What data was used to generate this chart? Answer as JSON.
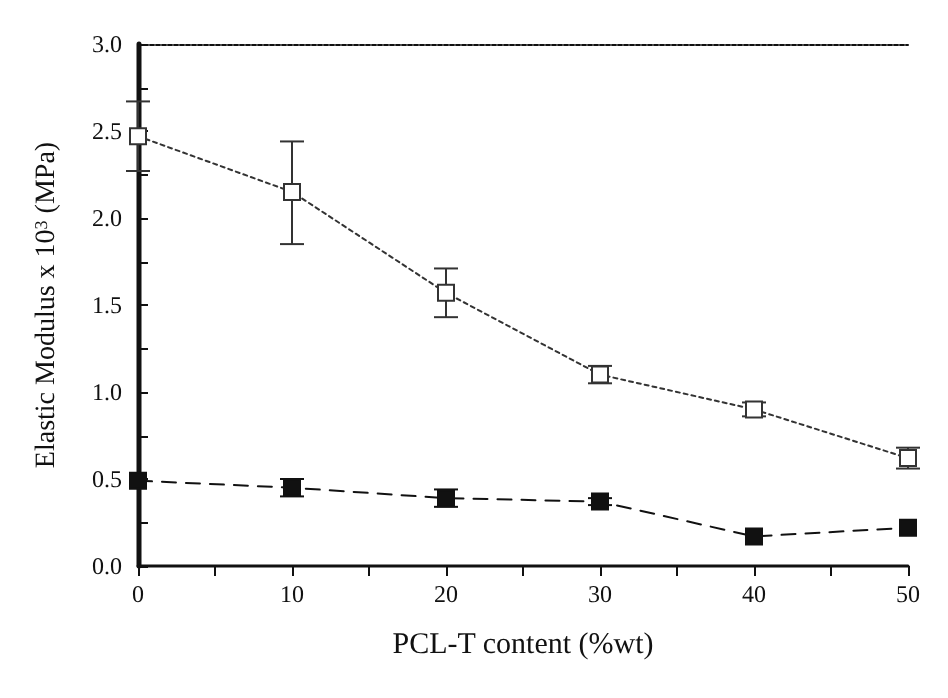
{
  "chart_data": {
    "type": "line",
    "xlabel": "PCL-T content (%wt)",
    "ylabel": "Elastic Modulus x 10$^{3}$ (MPa)",
    "x": [
      0,
      10,
      20,
      30,
      40,
      50
    ],
    "xlim": [
      0,
      50
    ],
    "xticks": [
      0,
      {
        "value": 5,
        "label": null
      },
      10,
      {
        "value": 15,
        "label": null
      },
      20,
      {
        "value": 25,
        "label": null
      },
      30,
      {
        "value": 35,
        "label": null
      },
      40,
      {
        "value": 45,
        "label": null
      },
      50
    ],
    "ylim": [
      0,
      3
    ],
    "yticks": [
      "0.0",
      {
        "value": 0.25,
        "label": null
      },
      {
        "value": 0.5,
        "label": "0.5"
      },
      {
        "value": 0.75,
        "label": null
      },
      {
        "value": 1,
        "label": "1.0"
      },
      {
        "value": 1.25,
        "label": null
      },
      {
        "value": 1.5,
        "label": "1.5"
      },
      {
        "value": 1.75,
        "label": null
      },
      {
        "value": 2,
        "label": "2.0"
      },
      {
        "value": 2.25,
        "label": null
      },
      {
        "value": 2.5,
        "label": "2.5"
      },
      {
        "value": 2.75,
        "label": null
      },
      {
        "value": 3,
        "label": "3.0"
      }
    ],
    "series": [
      {
        "color": "#333333",
        "marker": "square",
        "line_style": "dotted",
        "values": [
          2.47,
          2.15,
          1.57,
          1.1,
          0.9,
          0.62
        ],
        "errors": [
          0.2,
          [
            1.85,
            2.44
          ],
          [
            1.43,
            1.71
          ],
          0.05,
          0.04,
          0.06
        ]
      },
      {
        "color": "#111111",
        "marker": "square",
        "line_style": "dashed",
        "values": [
          0.49,
          0.45,
          0.39,
          0.37,
          0.17,
          0.22
        ],
        "errors": [
          null,
          0.05,
          0.05,
          0.02,
          null,
          null
        ]
      }
    ],
    "grid": false
  }
}
